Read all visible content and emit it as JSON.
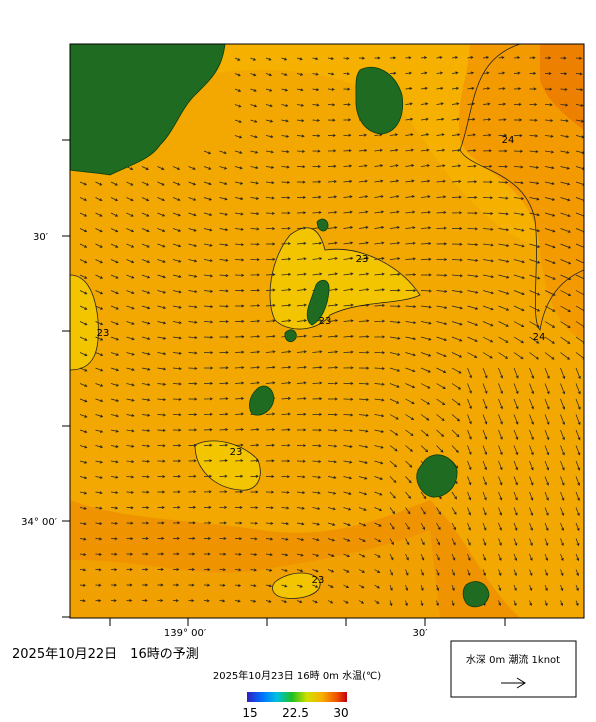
{
  "header": {
    "forecast_issued": "2025年10月22日　16時の予測"
  },
  "map": {
    "lat_labels": [
      "30′",
      "34° 00′"
    ],
    "lon_labels": [
      "139° 00′",
      "30′"
    ],
    "contour_labels": [
      "24",
      "24",
      "23",
      "23",
      "23",
      "23",
      "23"
    ]
  },
  "colorbar": {
    "title": "2025年10月23日 16時 0m 水温(℃)",
    "range": [
      15,
      30
    ],
    "ticks": [
      15,
      22.5,
      30
    ]
  },
  "legend": {
    "label": "水深 0m 潮流 1knot"
  }
}
